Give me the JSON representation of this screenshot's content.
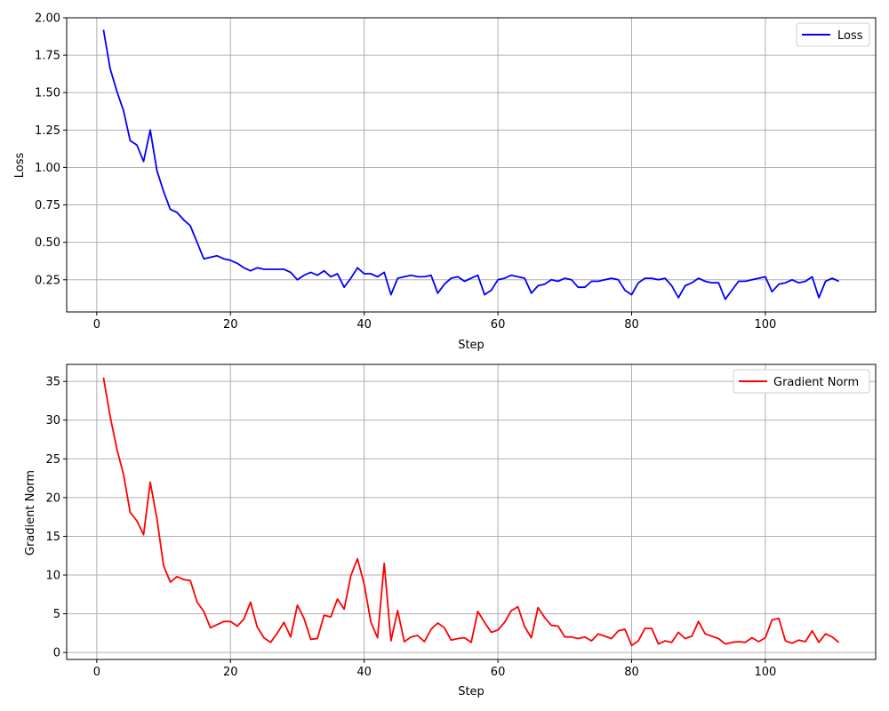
{
  "chart_data": [
    {
      "type": "line",
      "xlabel": "Step",
      "ylabel": "Loss",
      "xlim": [
        -4.5,
        116.5
      ],
      "ylim": [
        0.035,
        2.0
      ],
      "xticks": [
        0,
        20,
        40,
        60,
        80,
        100
      ],
      "yticks": [
        0.25,
        0.5,
        0.75,
        1.0,
        1.25,
        1.5,
        1.75,
        2.0
      ],
      "ytick_labels": [
        "0.25",
        "0.50",
        "0.75",
        "1.00",
        "1.25",
        "1.50",
        "1.75",
        "2.00"
      ],
      "grid": true,
      "legend": "top-right",
      "series": [
        {
          "name": "Loss",
          "color": "#0000ff",
          "x_start": 1,
          "values": [
            1.92,
            1.66,
            1.51,
            1.38,
            1.18,
            1.15,
            1.04,
            1.25,
            0.98,
            0.84,
            0.72,
            0.7,
            0.65,
            0.61,
            0.5,
            0.39,
            0.4,
            0.41,
            0.39,
            0.38,
            0.36,
            0.33,
            0.31,
            0.33,
            0.32,
            0.32,
            0.32,
            0.32,
            0.3,
            0.25,
            0.28,
            0.3,
            0.28,
            0.31,
            0.27,
            0.29,
            0.2,
            0.26,
            0.33,
            0.29,
            0.29,
            0.27,
            0.3,
            0.15,
            0.26,
            0.27,
            0.28,
            0.27,
            0.27,
            0.28,
            0.16,
            0.22,
            0.26,
            0.27,
            0.24,
            0.26,
            0.28,
            0.15,
            0.18,
            0.25,
            0.26,
            0.28,
            0.27,
            0.26,
            0.16,
            0.21,
            0.22,
            0.25,
            0.24,
            0.26,
            0.25,
            0.2,
            0.2,
            0.24,
            0.24,
            0.25,
            0.26,
            0.25,
            0.18,
            0.15,
            0.23,
            0.26,
            0.26,
            0.25,
            0.26,
            0.21,
            0.13,
            0.21,
            0.23,
            0.26,
            0.24,
            0.23,
            0.23,
            0.12,
            0.18,
            0.24,
            0.24,
            0.25,
            0.26,
            0.27,
            0.17,
            0.22,
            0.23,
            0.25,
            0.23,
            0.24,
            0.27,
            0.13,
            0.24,
            0.26,
            0.24
          ]
        }
      ]
    },
    {
      "type": "line",
      "xlabel": "Step",
      "ylabel": "Gradient Norm",
      "xlim": [
        -4.5,
        116.5
      ],
      "ylim": [
        -0.9,
        37.2
      ],
      "xticks": [
        0,
        20,
        40,
        60,
        80,
        100
      ],
      "yticks": [
        0,
        5,
        10,
        15,
        20,
        25,
        30,
        35
      ],
      "ytick_labels": [
        "0",
        "5",
        "10",
        "15",
        "20",
        "25",
        "30",
        "35"
      ],
      "grid": true,
      "legend": "top-right",
      "series": [
        {
          "name": "Gradient Norm",
          "color": "#ff0000",
          "x_start": 1,
          "values": [
            35.5,
            30.5,
            26.3,
            23.0,
            18.1,
            17.0,
            15.2,
            22.0,
            17.3,
            11.2,
            9.1,
            9.8,
            9.4,
            9.3,
            6.5,
            5.3,
            3.2,
            3.6,
            4.0,
            4.0,
            3.4,
            4.3,
            6.5,
            3.3,
            1.9,
            1.3,
            2.5,
            3.9,
            2.0,
            6.1,
            4.4,
            1.7,
            1.8,
            4.8,
            4.6,
            6.9,
            5.6,
            9.9,
            12.1,
            8.8,
            3.9,
            1.9,
            11.5,
            1.5,
            5.4,
            1.4,
            2.0,
            2.2,
            1.4,
            3.0,
            3.8,
            3.2,
            1.6,
            1.8,
            1.9,
            1.3,
            5.3,
            3.9,
            2.6,
            2.9,
            3.9,
            5.4,
            5.9,
            3.3,
            1.9,
            5.8,
            4.5,
            3.5,
            3.4,
            2.0,
            2.0,
            1.8,
            2.0,
            1.5,
            2.4,
            2.1,
            1.8,
            2.8,
            3.0,
            0.9,
            1.5,
            3.1,
            3.1,
            1.1,
            1.5,
            1.3,
            2.6,
            1.8,
            2.1,
            4.0,
            2.4,
            2.1,
            1.8,
            1.1,
            1.3,
            1.4,
            1.3,
            1.9,
            1.4,
            1.9,
            4.2,
            4.4,
            1.5,
            1.2,
            1.6,
            1.4,
            2.8,
            1.3,
            2.4,
            2.0,
            1.3
          ]
        }
      ]
    }
  ]
}
